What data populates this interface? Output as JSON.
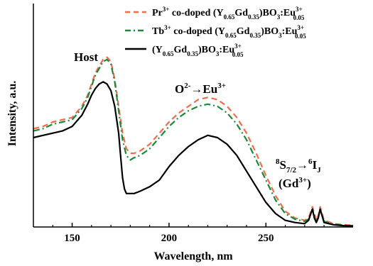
{
  "chart_data": {
    "type": "line",
    "title": "",
    "xlabel": "Wavelength, nm",
    "ylabel": "Intensity, a.u.",
    "xlim": [
      130,
      295
    ],
    "ylim": [
      0,
      1.0
    ],
    "xticks": [
      150,
      200,
      250
    ],
    "yticks_labeled": false,
    "grid": false,
    "legend": {
      "position": "top-right"
    },
    "series": [
      {
        "name": "Pr3+ co-doped (Y0.65Gd0.35)BO3:Eu3+0.05",
        "legend_parts": {
          "pre": "Pr",
          "pre_sup": "3+",
          "mid": " co-doped (Y",
          "s1": "0.65",
          "gd": "Gd",
          "s2": "0.35",
          "bo": ")BO",
          "s3": "3",
          "eu": ":Eu",
          "eu_sup": "3+",
          "eu_sub": "0.05"
        },
        "color": "#f26b4a",
        "style": "dashed",
        "x": [
          130,
          135,
          140,
          145,
          150,
          155,
          158,
          160,
          162,
          164,
          166,
          168,
          170,
          172,
          174,
          176,
          178,
          180,
          182,
          185,
          190,
          195,
          200,
          205,
          210,
          215,
          220,
          225,
          230,
          235,
          240,
          245,
          250,
          255,
          260,
          265,
          270,
          272,
          274,
          275,
          276,
          277,
          278,
          280,
          285,
          290,
          295
        ],
        "y": [
          0.44,
          0.45,
          0.47,
          0.48,
          0.49,
          0.54,
          0.59,
          0.64,
          0.69,
          0.72,
          0.75,
          0.76,
          0.74,
          0.66,
          0.54,
          0.42,
          0.35,
          0.33,
          0.33,
          0.34,
          0.37,
          0.42,
          0.47,
          0.51,
          0.54,
          0.57,
          0.58,
          0.57,
          0.54,
          0.49,
          0.42,
          0.33,
          0.23,
          0.14,
          0.07,
          0.04,
          0.03,
          0.04,
          0.09,
          0.06,
          0.03,
          0.05,
          0.09,
          0.03,
          0.015,
          0.01,
          0.008
        ]
      },
      {
        "name": "Tb3+ co-doped (Y0.65Gd0.35)BO3:Eu3+0.05",
        "legend_parts": {
          "pre": "Tb",
          "pre_sup": "3+",
          "mid": " co-doped (Y",
          "s1": "0.65",
          "gd": "Gd",
          "s2": "0.35",
          "bo": ")BO",
          "s3": "3",
          "eu": ":Eu",
          "eu_sup": "3+",
          "eu_sub": "0.05"
        },
        "color": "#1a8a3a",
        "style": "dashdot",
        "x": [
          130,
          135,
          140,
          145,
          150,
          155,
          158,
          160,
          162,
          164,
          166,
          168,
          170,
          172,
          174,
          176,
          178,
          180,
          182,
          185,
          190,
          195,
          200,
          205,
          210,
          215,
          220,
          225,
          230,
          235,
          240,
          245,
          250,
          255,
          260,
          265,
          270,
          272,
          274,
          275,
          276,
          277,
          278,
          280,
          285,
          290,
          295
        ],
        "y": [
          0.43,
          0.44,
          0.46,
          0.47,
          0.48,
          0.53,
          0.58,
          0.63,
          0.68,
          0.71,
          0.74,
          0.75,
          0.73,
          0.65,
          0.52,
          0.39,
          0.32,
          0.3,
          0.31,
          0.32,
          0.35,
          0.4,
          0.45,
          0.49,
          0.52,
          0.54,
          0.55,
          0.54,
          0.51,
          0.46,
          0.39,
          0.3,
          0.21,
          0.12,
          0.06,
          0.035,
          0.025,
          0.035,
          0.08,
          0.05,
          0.025,
          0.045,
          0.08,
          0.025,
          0.012,
          0.008,
          0.006
        ]
      },
      {
        "name": "(Y0.65Gd0.35)BO3:Eu3+0.05",
        "legend_parts": {
          "pre": "",
          "pre_sup": "",
          "mid": "(Y",
          "s1": "0.65",
          "gd": "Gd",
          "s2": "0.35",
          "bo": ")BO",
          "s3": "3",
          "eu": ":Eu",
          "eu_sup": "3+",
          "eu_sub": "0.05"
        },
        "color": "#000000",
        "style": "solid",
        "x": [
          130,
          135,
          140,
          145,
          150,
          155,
          158,
          160,
          162,
          164,
          166,
          168,
          170,
          172,
          174,
          175,
          176,
          177,
          178,
          180,
          182,
          185,
          190,
          195,
          200,
          205,
          210,
          215,
          220,
          225,
          230,
          235,
          240,
          245,
          250,
          255,
          260,
          265,
          270,
          272,
          274,
          275,
          276,
          277,
          278,
          280,
          285,
          290,
          295
        ],
        "y": [
          0.4,
          0.41,
          0.42,
          0.43,
          0.45,
          0.5,
          0.55,
          0.59,
          0.62,
          0.64,
          0.65,
          0.64,
          0.61,
          0.54,
          0.42,
          0.32,
          0.22,
          0.17,
          0.15,
          0.15,
          0.15,
          0.16,
          0.18,
          0.21,
          0.27,
          0.32,
          0.36,
          0.39,
          0.41,
          0.4,
          0.37,
          0.32,
          0.25,
          0.18,
          0.11,
          0.06,
          0.03,
          0.02,
          0.015,
          0.03,
          0.08,
          0.04,
          0.02,
          0.04,
          0.08,
          0.02,
          0.01,
          0.006,
          0.004
        ]
      }
    ],
    "annotations": {
      "host": {
        "text": "Host"
      },
      "o_eu": {
        "base": "O",
        "sup1": "2-",
        "arrow": "→Eu",
        "sup2": "3+"
      },
      "s_i": {
        "pre_sup": "8",
        "s": "S",
        "s_sub": "7/2",
        "arrow": "→",
        "sup": "6",
        "i": "I",
        "i_sub": "J"
      },
      "gd": {
        "open": "(Gd",
        "sup": "3+",
        "close": ")"
      }
    }
  }
}
